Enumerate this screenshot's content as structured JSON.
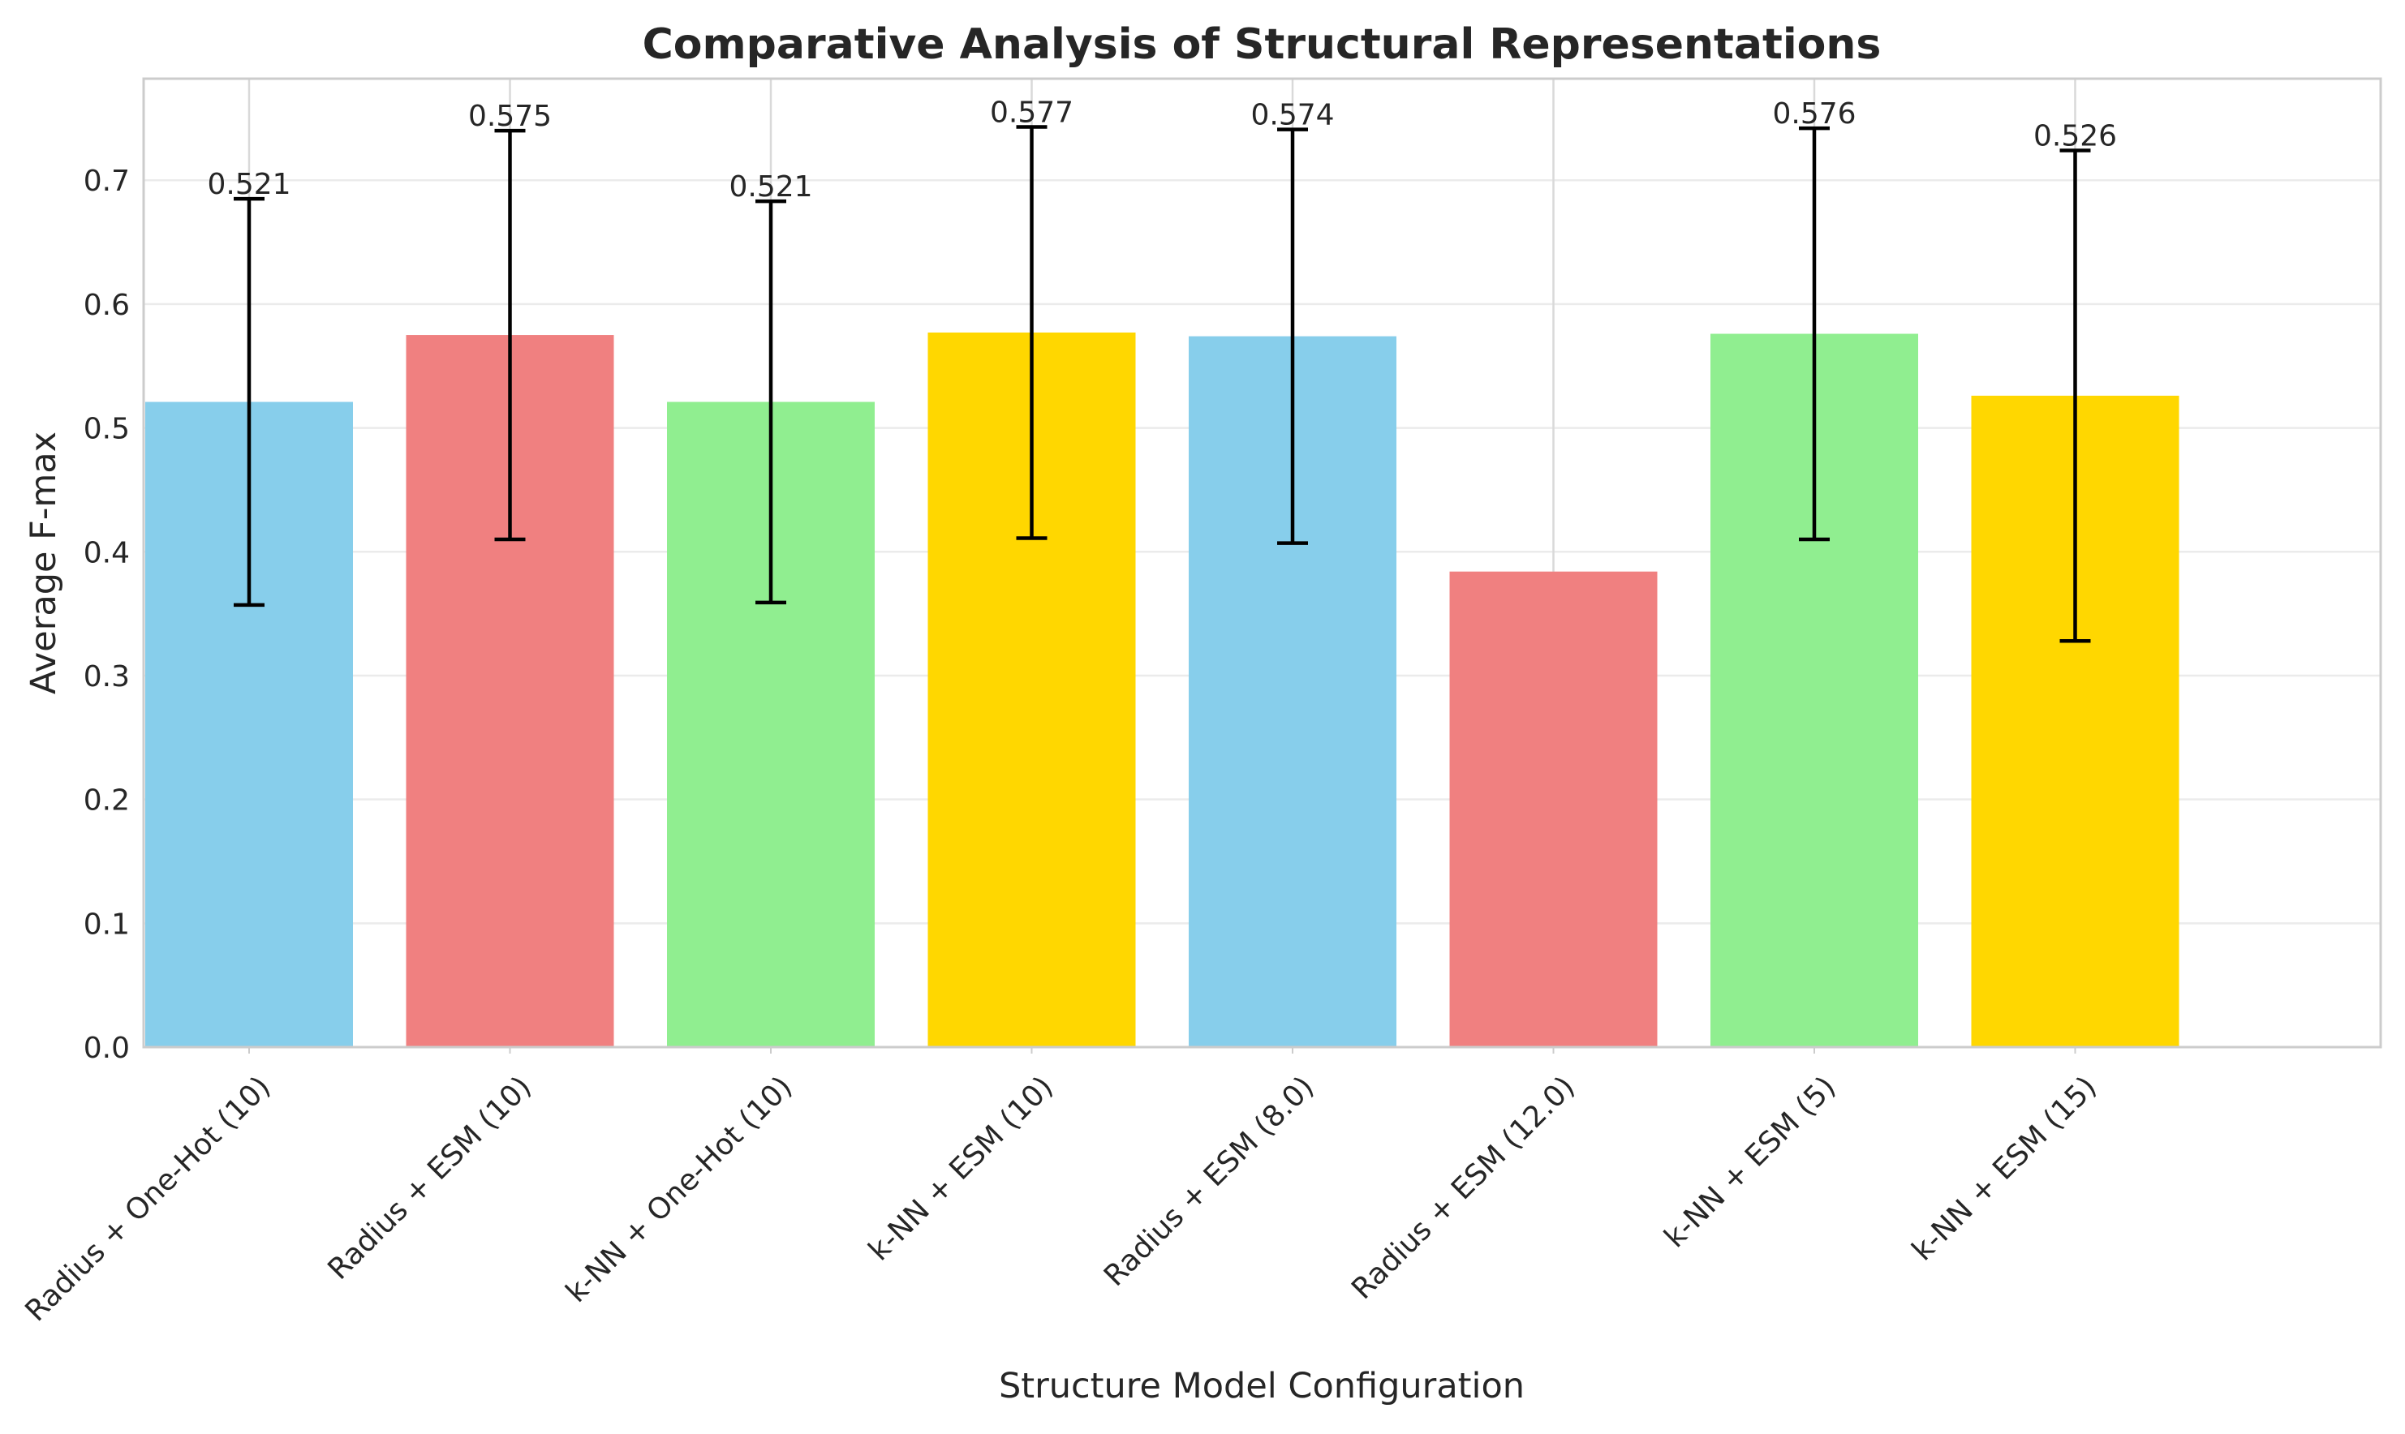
{
  "chart_data": {
    "type": "bar",
    "title": "Comparative Analysis of Structural Representations",
    "xlabel": "Structure Model Configuration",
    "ylabel": "Average F-max",
    "categories": [
      "Radius + One-Hot (10)",
      "Radius + ESM (10)",
      "k-NN + One-Hot (10)",
      "k-NN + ESM (10)",
      "Radius + ESM (8.0)",
      "Radius + ESM (12.0)",
      "k-NN + ESM (5)",
      "k-NN + ESM (15)"
    ],
    "values": [
      0.521,
      0.575,
      0.521,
      0.577,
      0.574,
      0.384,
      0.576,
      0.526
    ],
    "value_labels": [
      "0.521",
      "0.575",
      "0.521",
      "0.577",
      "0.574",
      "",
      "0.576",
      "0.526"
    ],
    "error_bars": [
      0.164,
      0.165,
      0.162,
      0.166,
      0.167,
      null,
      0.166,
      0.198
    ],
    "colors": [
      "#87CEEB",
      "#F08080",
      "#90EE90",
      "#FFD700",
      "#87CEEB",
      "#F08080",
      "#90EE90",
      "#FFD700"
    ],
    "yticks": [
      "0.0",
      "0.1",
      "0.2",
      "0.3",
      "0.4",
      "0.5",
      "0.6",
      "0.7"
    ],
    "ylim": [
      0,
      0.782
    ],
    "grid": true,
    "legend": "none"
  }
}
